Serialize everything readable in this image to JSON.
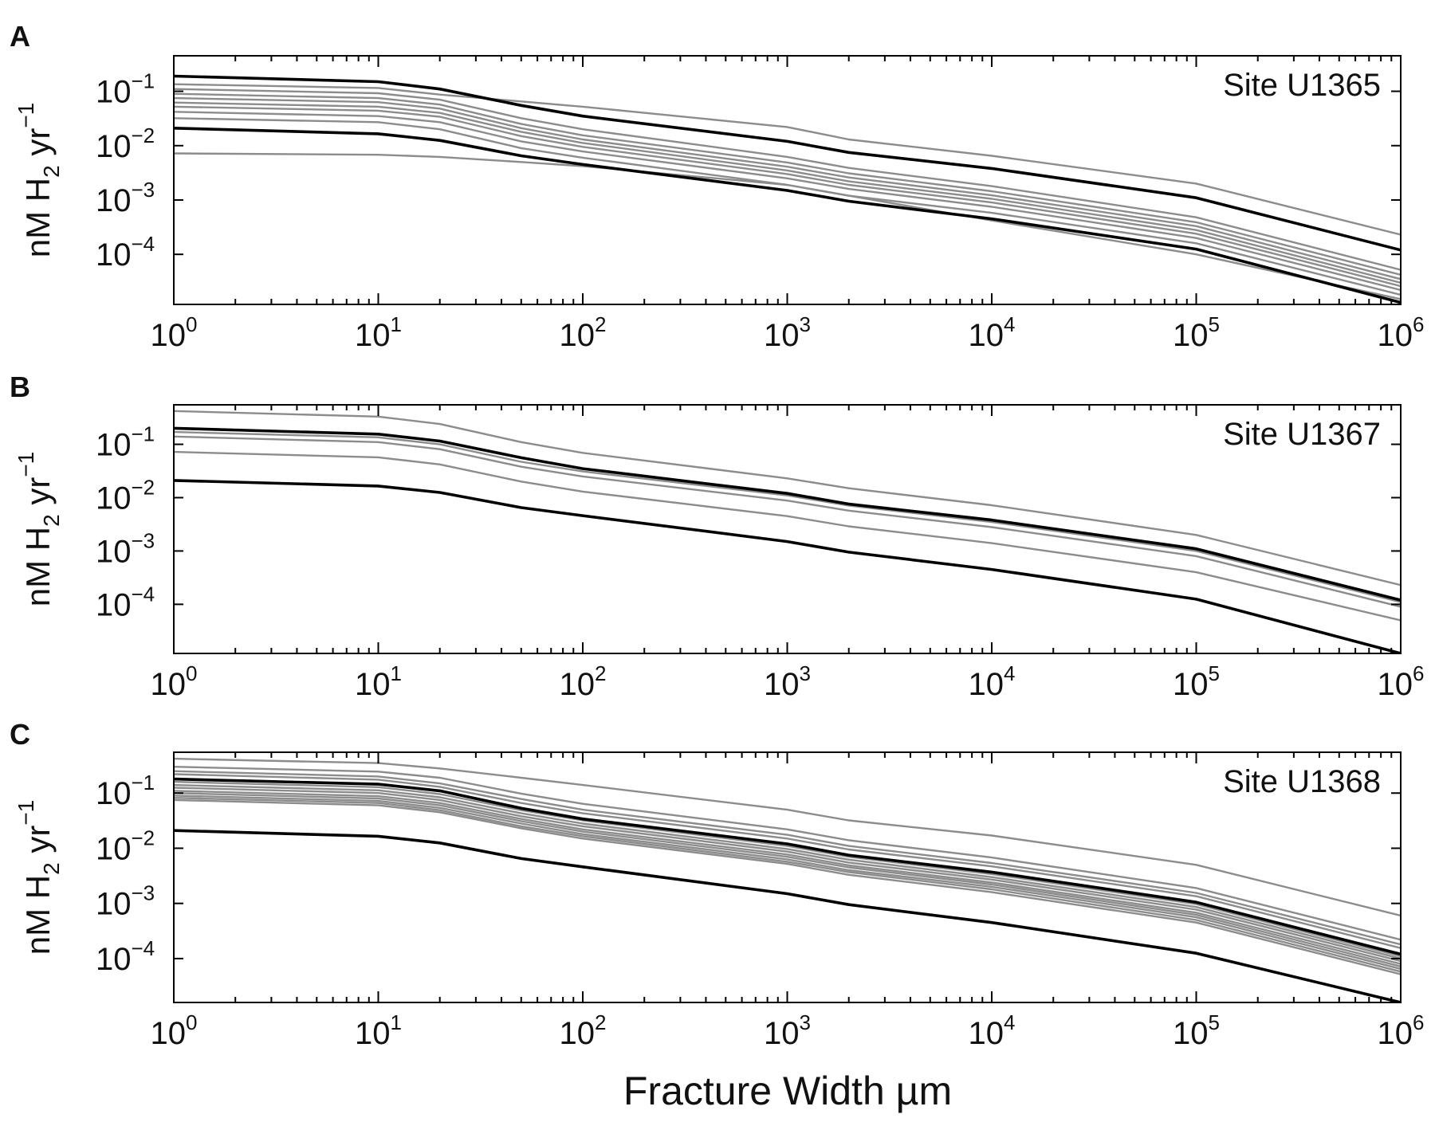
{
  "figure": {
    "xlabel": "Fracture Width µm",
    "ylabel": {
      "prefix": "nM H",
      "sub": "2",
      "mid": " yr",
      "sup": "−1"
    }
  },
  "colors": {
    "bound": "#000000",
    "member": "#8c8c8c",
    "frame": "#000000"
  },
  "chart_data": [
    {
      "type": "line",
      "panel": "A",
      "site_label": "Site U1365",
      "xscale": "log",
      "yscale": "log",
      "xlim": [
        1,
        1000000
      ],
      "ylim": [
        1.2e-05,
        0.45
      ],
      "xticks": [
        {
          "base": "10",
          "exp": "0"
        },
        {
          "base": "10",
          "exp": "1"
        },
        {
          "base": "10",
          "exp": "2"
        },
        {
          "base": "10",
          "exp": "3"
        },
        {
          "base": "10",
          "exp": "4"
        },
        {
          "base": "10",
          "exp": "5"
        },
        {
          "base": "10",
          "exp": "6"
        }
      ],
      "yticks": [
        {
          "base": "10",
          "exp": "−1"
        },
        {
          "base": "10",
          "exp": "−2"
        },
        {
          "base": "10",
          "exp": "−3"
        },
        {
          "base": "10",
          "exp": "−4"
        }
      ],
      "x": [
        1,
        10,
        20,
        50,
        100,
        1000,
        2000,
        10000,
        100000,
        1000000
      ],
      "series": [
        {
          "role": "bound",
          "values": [
            0.19,
            0.15,
            0.11,
            0.055,
            0.035,
            0.012,
            0.0075,
            0.0038,
            0.0011,
            0.00012
          ]
        },
        {
          "role": "bound",
          "values": [
            0.021,
            0.0165,
            0.0125,
            0.0065,
            0.0045,
            0.0015,
            0.00095,
            0.00045,
            0.000125,
            1.3e-05
          ]
        },
        {
          "role": "member",
          "values": [
            0.0072,
            0.0068,
            0.0062,
            0.005,
            0.0042,
            0.0019,
            0.0012,
            0.00042,
            0.0001,
            1.5e-05
          ]
        },
        {
          "role": "member",
          "values": [
            0.032,
            0.027,
            0.02,
            0.009,
            0.006,
            0.0019,
            0.0012,
            0.00058,
            0.00016,
            1.8e-05
          ]
        },
        {
          "role": "member",
          "values": [
            0.042,
            0.035,
            0.027,
            0.012,
            0.0078,
            0.0025,
            0.0016,
            0.00075,
            0.0002,
            2.2e-05
          ]
        },
        {
          "role": "member",
          "values": [
            0.052,
            0.044,
            0.034,
            0.015,
            0.0095,
            0.003,
            0.0019,
            0.0009,
            0.00024,
            2.6e-05
          ]
        },
        {
          "role": "member",
          "values": [
            0.062,
            0.052,
            0.04,
            0.018,
            0.0112,
            0.0035,
            0.0022,
            0.00105,
            0.00028,
            3e-05
          ]
        },
        {
          "role": "member",
          "values": [
            0.075,
            0.063,
            0.048,
            0.021,
            0.013,
            0.0041,
            0.0026,
            0.00122,
            0.00033,
            3.5e-05
          ]
        },
        {
          "role": "member",
          "values": [
            0.09,
            0.075,
            0.057,
            0.025,
            0.0155,
            0.0049,
            0.0031,
            0.00145,
            0.00039,
            4.2e-05
          ]
        },
        {
          "role": "member",
          "values": [
            0.11,
            0.092,
            0.07,
            0.032,
            0.02,
            0.0062,
            0.0039,
            0.0018,
            0.00048,
            5.2e-05
          ]
        },
        {
          "role": "member",
          "values": [
            0.135,
            0.115,
            0.087,
            0.065,
            0.052,
            0.022,
            0.013,
            0.0065,
            0.002,
            0.00023
          ]
        }
      ]
    },
    {
      "type": "line",
      "panel": "B",
      "site_label": "Site U1367",
      "xscale": "log",
      "yscale": "log",
      "xlim": [
        1,
        1000000
      ],
      "ylim": [
        1.2e-05,
        0.55
      ],
      "xticks": [
        {
          "base": "10",
          "exp": "0"
        },
        {
          "base": "10",
          "exp": "1"
        },
        {
          "base": "10",
          "exp": "2"
        },
        {
          "base": "10",
          "exp": "3"
        },
        {
          "base": "10",
          "exp": "4"
        },
        {
          "base": "10",
          "exp": "5"
        },
        {
          "base": "10",
          "exp": "6"
        }
      ],
      "yticks": [
        {
          "base": "10",
          "exp": "−1"
        },
        {
          "base": "10",
          "exp": "−2"
        },
        {
          "base": "10",
          "exp": "−3"
        },
        {
          "base": "10",
          "exp": "−4"
        }
      ],
      "x": [
        1,
        10,
        20,
        50,
        100,
        1000,
        2000,
        10000,
        100000,
        1000000
      ],
      "series": [
        {
          "role": "bound",
          "values": [
            0.2,
            0.155,
            0.115,
            0.056,
            0.035,
            0.012,
            0.0076,
            0.0038,
            0.0011,
            0.00012
          ]
        },
        {
          "role": "bound",
          "values": [
            0.021,
            0.0165,
            0.0125,
            0.0065,
            0.0046,
            0.0015,
            0.00095,
            0.00045,
            0.000125,
            1.2e-05
          ]
        },
        {
          "role": "member",
          "values": [
            0.42,
            0.33,
            0.24,
            0.11,
            0.069,
            0.023,
            0.015,
            0.0072,
            0.002,
            0.00023
          ]
        },
        {
          "role": "member",
          "values": [
            0.17,
            0.135,
            0.1,
            0.047,
            0.031,
            0.011,
            0.0071,
            0.0035,
            0.001,
            0.00011
          ]
        },
        {
          "role": "member",
          "values": [
            0.14,
            0.11,
            0.081,
            0.038,
            0.025,
            0.0088,
            0.0057,
            0.0028,
            0.0008,
            9e-05
          ]
        },
        {
          "role": "member",
          "values": [
            0.072,
            0.057,
            0.042,
            0.02,
            0.013,
            0.0045,
            0.0029,
            0.0014,
            0.0004,
            5e-05
          ]
        }
      ]
    },
    {
      "type": "line",
      "panel": "C",
      "site_label": "Site U1368",
      "xscale": "log",
      "yscale": "log",
      "xlim": [
        1,
        1000000
      ],
      "ylim": [
        1.6e-05,
        0.55
      ],
      "xticks": [
        {
          "base": "10",
          "exp": "0"
        },
        {
          "base": "10",
          "exp": "1"
        },
        {
          "base": "10",
          "exp": "2"
        },
        {
          "base": "10",
          "exp": "3"
        },
        {
          "base": "10",
          "exp": "4"
        },
        {
          "base": "10",
          "exp": "5"
        },
        {
          "base": "10",
          "exp": "6"
        }
      ],
      "yticks": [
        {
          "base": "10",
          "exp": "−1"
        },
        {
          "base": "10",
          "exp": "−2"
        },
        {
          "base": "10",
          "exp": "−3"
        },
        {
          "base": "10",
          "exp": "−4"
        }
      ],
      "x": [
        1,
        10,
        20,
        50,
        100,
        1000,
        2000,
        10000,
        100000,
        1000000
      ],
      "series": [
        {
          "role": "bound",
          "values": [
            0.18,
            0.145,
            0.11,
            0.053,
            0.034,
            0.012,
            0.0075,
            0.0037,
            0.00105,
            0.00012
          ]
        },
        {
          "role": "bound",
          "values": [
            0.021,
            0.0165,
            0.0125,
            0.0065,
            0.0046,
            0.0015,
            0.00095,
            0.00045,
            0.000125,
            1.6e-05
          ]
        },
        {
          "role": "member",
          "values": [
            0.42,
            0.35,
            0.28,
            0.19,
            0.14,
            0.05,
            0.032,
            0.017,
            0.005,
            0.0006
          ]
        },
        {
          "role": "member",
          "values": [
            0.3,
            0.245,
            0.19,
            0.098,
            0.064,
            0.022,
            0.014,
            0.0068,
            0.0019,
            0.00022
          ]
        },
        {
          "role": "member",
          "values": [
            0.25,
            0.2,
            0.15,
            0.078,
            0.05,
            0.0175,
            0.011,
            0.0054,
            0.00155,
            0.00018
          ]
        },
        {
          "role": "member",
          "values": [
            0.22,
            0.175,
            0.13,
            0.066,
            0.043,
            0.015,
            0.0095,
            0.0047,
            0.00135,
            0.000155
          ]
        },
        {
          "role": "member",
          "values": [
            0.16,
            0.128,
            0.096,
            0.049,
            0.032,
            0.011,
            0.007,
            0.0034,
            0.00097,
            0.00011
          ]
        },
        {
          "role": "member",
          "values": [
            0.14,
            0.112,
            0.084,
            0.043,
            0.028,
            0.0097,
            0.0062,
            0.003,
            0.00086,
            0.0001
          ]
        },
        {
          "role": "member",
          "values": [
            0.125,
            0.1,
            0.075,
            0.038,
            0.025,
            0.0087,
            0.0055,
            0.0027,
            0.00077,
            9e-05
          ]
        },
        {
          "role": "member",
          "values": [
            0.11,
            0.088,
            0.066,
            0.034,
            0.022,
            0.0077,
            0.0049,
            0.0024,
            0.00068,
            8e-05
          ]
        },
        {
          "role": "member",
          "values": [
            0.1,
            0.08,
            0.06,
            0.031,
            0.02,
            0.007,
            0.0045,
            0.0022,
            0.00062,
            7.2e-05
          ]
        },
        {
          "role": "member",
          "values": [
            0.09,
            0.072,
            0.054,
            0.028,
            0.018,
            0.0063,
            0.004,
            0.002,
            0.00056,
            6.5e-05
          ]
        },
        {
          "role": "member",
          "values": [
            0.082,
            0.066,
            0.049,
            0.025,
            0.0165,
            0.0057,
            0.0037,
            0.0018,
            0.0005,
            5.8e-05
          ]
        },
        {
          "role": "member",
          "values": [
            0.075,
            0.06,
            0.045,
            0.023,
            0.015,
            0.0052,
            0.0033,
            0.0016,
            0.00045,
            5.2e-05
          ]
        }
      ]
    }
  ]
}
